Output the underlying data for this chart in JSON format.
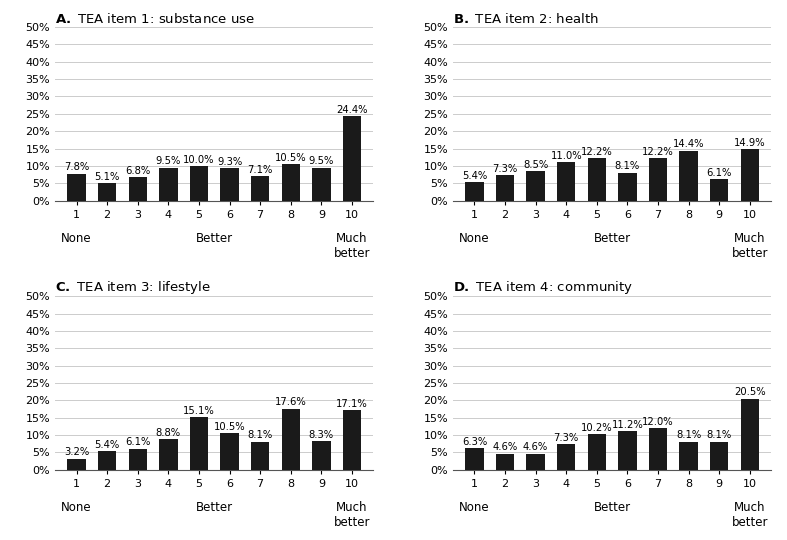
{
  "panels": [
    {
      "label": "A.",
      "title": "TEA item 1: substance use",
      "values": [
        7.8,
        5.1,
        6.8,
        9.5,
        10.0,
        9.3,
        7.1,
        10.5,
        9.5,
        24.4
      ]
    },
    {
      "label": "B.",
      "title": "TEA item 2: health",
      "values": [
        5.4,
        7.3,
        8.5,
        11.0,
        12.2,
        8.1,
        12.2,
        14.4,
        6.1,
        14.9
      ]
    },
    {
      "label": "C.",
      "title": "TEA item 3: lifestyle",
      "values": [
        3.2,
        5.4,
        6.1,
        8.8,
        15.1,
        10.5,
        8.1,
        17.6,
        8.3,
        17.1
      ]
    },
    {
      "label": "D.",
      "title": "TEA item 4: community",
      "values": [
        6.3,
        4.6,
        4.6,
        7.3,
        10.2,
        11.2,
        12.0,
        8.1,
        8.1,
        20.5
      ]
    }
  ],
  "categories": [
    "1",
    "2",
    "3",
    "4",
    "5",
    "6",
    "7",
    "8",
    "9",
    "10"
  ],
  "bar_color": "#1a1a1a",
  "ylim": [
    0,
    50
  ],
  "yticks": [
    0,
    5,
    10,
    15,
    20,
    25,
    30,
    35,
    40,
    45,
    50
  ],
  "xlabel_none": "None",
  "xlabel_better": "Better",
  "xlabel_much_better": "Much\nbetter",
  "background_color": "#ffffff",
  "title_fontsize": 9.5,
  "tick_fontsize": 8,
  "label_fontsize": 8.5,
  "annot_fontsize": 7.2
}
